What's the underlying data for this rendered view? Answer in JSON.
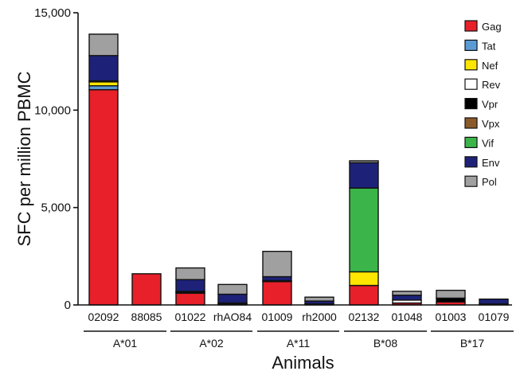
{
  "chart_data": {
    "type": "bar",
    "stacked": true,
    "xlabel": "Animals",
    "ylabel": "SFC per million PBMC",
    "ylim": [
      0,
      15000
    ],
    "yticks": [
      0,
      5000,
      10000,
      15000
    ],
    "ytick_labels": [
      "0",
      "5,000",
      "10,000",
      "15,000"
    ],
    "grid": false,
    "legend_position": "top-right",
    "categories": [
      "02092",
      "88085",
      "01022",
      "rhAO84",
      "01009",
      "rh2000",
      "02132",
      "01048",
      "01003",
      "01079"
    ],
    "groups": [
      {
        "label": "A*01",
        "members": [
          "02092",
          "88085"
        ]
      },
      {
        "label": "A*02",
        "members": [
          "01022",
          "rhAO84"
        ]
      },
      {
        "label": "A*11",
        "members": [
          "01009",
          "rh2000"
        ]
      },
      {
        "label": "B*08",
        "members": [
          "02132",
          "01048"
        ]
      },
      {
        "label": "B*17",
        "members": [
          "01003",
          "01079"
        ]
      }
    ],
    "series": [
      {
        "name": "Gag",
        "color": "#e8202a",
        "values": [
          11050,
          1600,
          600,
          0,
          1200,
          50,
          1000,
          100,
          150,
          50
        ]
      },
      {
        "name": "Tat",
        "color": "#5b9bd5",
        "values": [
          200,
          0,
          0,
          0,
          0,
          0,
          0,
          0,
          0,
          0
        ]
      },
      {
        "name": "Nef",
        "color": "#ffe600",
        "values": [
          200,
          0,
          0,
          0,
          0,
          0,
          700,
          0,
          0,
          0
        ]
      },
      {
        "name": "Rev",
        "color": "#ffffff",
        "values": [
          50,
          0,
          50,
          50,
          50,
          0,
          0,
          150,
          0,
          0
        ]
      },
      {
        "name": "Vpr",
        "color": "#000000",
        "values": [
          0,
          0,
          50,
          50,
          0,
          0,
          0,
          0,
          200,
          0
        ]
      },
      {
        "name": "Vpx",
        "color": "#8b5a2b",
        "values": [
          0,
          0,
          0,
          0,
          0,
          0,
          0,
          0,
          0,
          0
        ]
      },
      {
        "name": "Vif",
        "color": "#3bb54a",
        "values": [
          0,
          0,
          0,
          0,
          0,
          0,
          4300,
          0,
          0,
          0
        ]
      },
      {
        "name": "Env",
        "color": "#1d2278",
        "values": [
          1300,
          0,
          600,
          450,
          200,
          150,
          1300,
          250,
          0,
          250
        ]
      },
      {
        "name": "Pol",
        "color": "#a0a0a0",
        "values": [
          1100,
          0,
          600,
          500,
          1300,
          200,
          100,
          200,
          400,
          0
        ]
      }
    ]
  }
}
